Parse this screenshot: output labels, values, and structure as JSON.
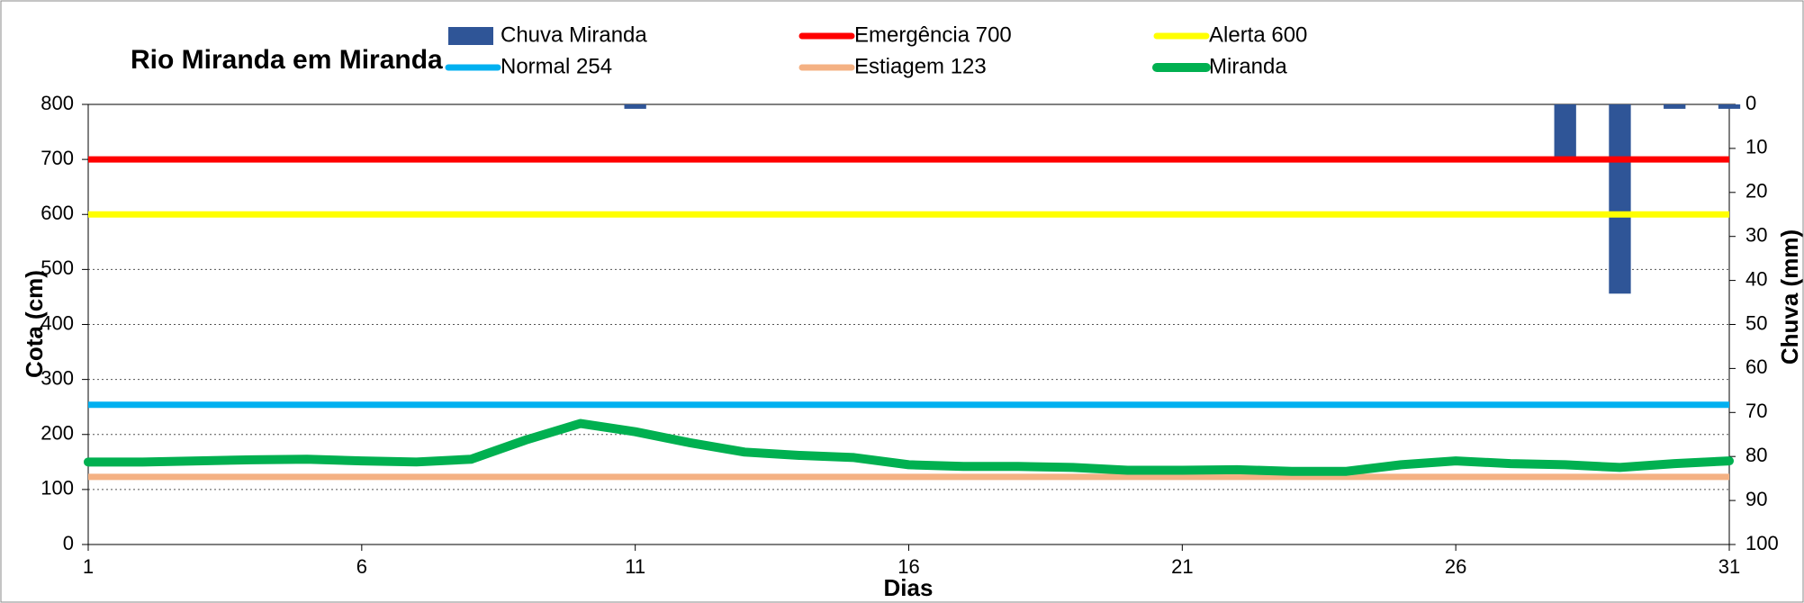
{
  "chart_data": {
    "type": "line",
    "title": "Rio Miranda em Miranda",
    "x_label": "Dias",
    "y_label": "Cota (cm)",
    "y2_label": "Chuva (mm)",
    "x": [
      1,
      2,
      3,
      4,
      5,
      6,
      7,
      8,
      9,
      10,
      11,
      12,
      13,
      14,
      15,
      16,
      17,
      18,
      19,
      20,
      21,
      22,
      23,
      24,
      25,
      26,
      27,
      28,
      29,
      30,
      31
    ],
    "xlim": [
      1,
      31
    ],
    "xticks": [
      1,
      6,
      11,
      16,
      21,
      26,
      31
    ],
    "ylim": [
      0,
      800
    ],
    "yticks": [
      0,
      100,
      200,
      300,
      400,
      500,
      600,
      700,
      800
    ],
    "y2lim": [
      100,
      0
    ],
    "y2ticks": [
      0,
      10,
      20,
      30,
      40,
      50,
      60,
      70,
      80,
      90,
      100
    ],
    "y2_inverted": true,
    "grid": true,
    "series": [
      {
        "name": "Chuva Miranda",
        "type": "bar",
        "axis": "y2",
        "color": "#2f5597",
        "values": [
          0,
          0,
          0,
          0,
          0,
          0,
          0,
          0,
          0,
          0,
          1,
          0,
          0,
          0,
          0,
          0,
          0,
          0,
          0,
          0,
          0,
          0,
          0,
          0,
          0,
          0,
          0,
          13,
          43,
          1,
          1
        ]
      },
      {
        "name": "Emergência 700",
        "type": "hline",
        "color": "#ff0000",
        "value": 700
      },
      {
        "name": "Alerta 600",
        "type": "hline",
        "color": "#ffff00",
        "value": 600
      },
      {
        "name": "Normal  254",
        "type": "hline",
        "color": "#00b0f0",
        "value": 254
      },
      {
        "name": "Estiagem 123",
        "type": "hline",
        "color": "#f4b183",
        "value": 123
      },
      {
        "name": "Miranda",
        "type": "line",
        "color": "#00b050",
        "values": [
          150,
          150,
          152,
          154,
          155,
          152,
          150,
          155,
          190,
          220,
          205,
          185,
          168,
          162,
          158,
          145,
          142,
          142,
          140,
          135,
          135,
          136,
          133,
          133,
          145,
          152,
          147,
          145,
          140,
          147,
          152
        ]
      }
    ]
  }
}
